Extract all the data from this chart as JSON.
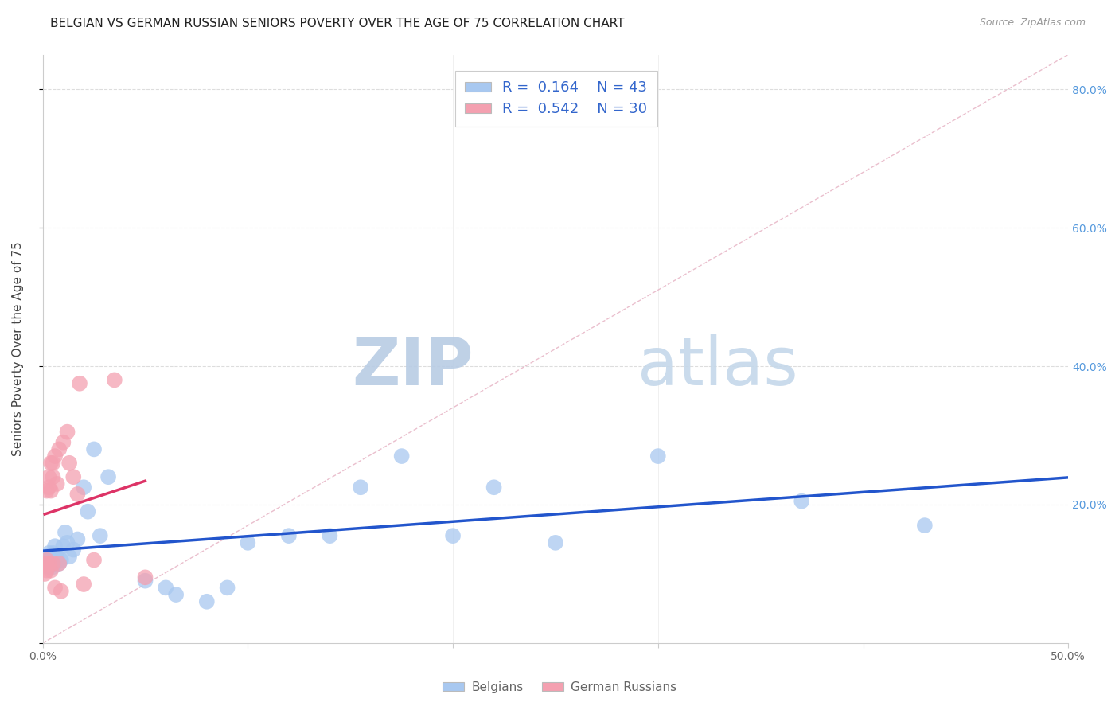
{
  "title": "BELGIAN VS GERMAN RUSSIAN SENIORS POVERTY OVER THE AGE OF 75 CORRELATION CHART",
  "source": "Source: ZipAtlas.com",
  "xlabel": "",
  "ylabel": "Seniors Poverty Over the Age of 75",
  "xlim": [
    0.0,
    0.5
  ],
  "ylim": [
    0.0,
    0.85
  ],
  "belgian_R": 0.164,
  "belgian_N": 43,
  "german_russian_R": 0.542,
  "german_russian_N": 30,
  "belgian_color": "#a8c8f0",
  "german_russian_color": "#f4a0b0",
  "belgian_line_color": "#2255cc",
  "german_russian_line_color": "#dd3366",
  "ref_line_color": "#e8b8c8",
  "watermark_color": "#dce8f5",
  "title_fontsize": 11,
  "axis_label_fontsize": 11,
  "tick_fontsize": 10,
  "legend_fontsize": 13,
  "belgians_x": [
    0.001,
    0.002,
    0.002,
    0.003,
    0.003,
    0.004,
    0.004,
    0.005,
    0.005,
    0.005,
    0.006,
    0.006,
    0.007,
    0.007,
    0.008,
    0.009,
    0.01,
    0.011,
    0.012,
    0.013,
    0.015,
    0.017,
    0.02,
    0.022,
    0.025,
    0.028,
    0.032,
    0.05,
    0.06,
    0.065,
    0.08,
    0.09,
    0.1,
    0.12,
    0.14,
    0.155,
    0.175,
    0.2,
    0.22,
    0.25,
    0.3,
    0.37,
    0.43
  ],
  "belgians_y": [
    0.115,
    0.12,
    0.125,
    0.11,
    0.13,
    0.115,
    0.12,
    0.11,
    0.125,
    0.13,
    0.115,
    0.14,
    0.12,
    0.125,
    0.115,
    0.12,
    0.14,
    0.16,
    0.145,
    0.125,
    0.135,
    0.15,
    0.225,
    0.19,
    0.28,
    0.155,
    0.24,
    0.09,
    0.08,
    0.07,
    0.06,
    0.08,
    0.145,
    0.155,
    0.155,
    0.225,
    0.27,
    0.155,
    0.225,
    0.145,
    0.27,
    0.205,
    0.17
  ],
  "german_russians_x": [
    0.001,
    0.001,
    0.002,
    0.002,
    0.002,
    0.003,
    0.003,
    0.003,
    0.004,
    0.004,
    0.004,
    0.005,
    0.005,
    0.005,
    0.006,
    0.006,
    0.007,
    0.008,
    0.008,
    0.009,
    0.01,
    0.012,
    0.013,
    0.015,
    0.017,
    0.018,
    0.02,
    0.025,
    0.035,
    0.05
  ],
  "german_russians_y": [
    0.1,
    0.115,
    0.105,
    0.12,
    0.22,
    0.115,
    0.225,
    0.24,
    0.105,
    0.22,
    0.26,
    0.24,
    0.26,
    0.115,
    0.27,
    0.08,
    0.23,
    0.115,
    0.28,
    0.075,
    0.29,
    0.305,
    0.26,
    0.24,
    0.215,
    0.375,
    0.085,
    0.12,
    0.38,
    0.095
  ]
}
